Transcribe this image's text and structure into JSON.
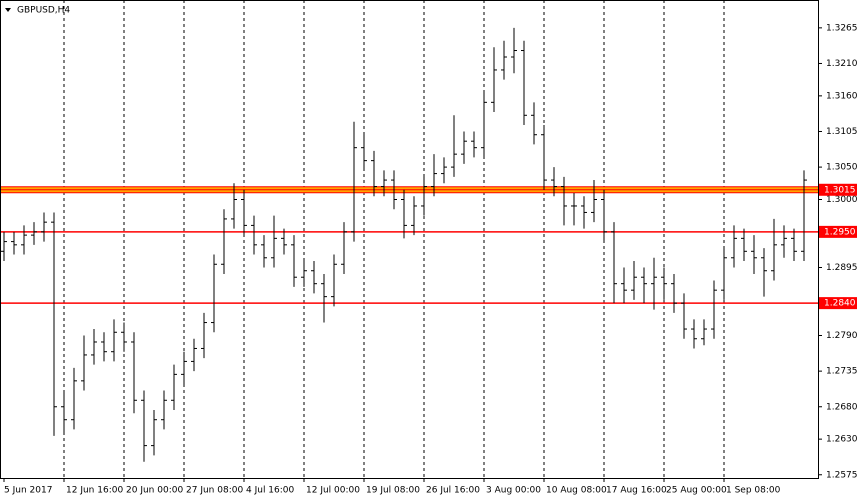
{
  "chart_data": {
    "type": "ohlc",
    "title": "GBPUSD,H4",
    "color": "#000000",
    "grid": true,
    "ylim": [
      1.257,
      1.3308
    ],
    "yticks": [
      1.3265,
      {
        "value": 1.321,
        "label": "1.3210"
      },
      {
        "value": 1.316,
        "label": "1.3160"
      },
      1.3105,
      {
        "value": 1.305,
        "label": "1.3050"
      },
      {
        "value": 1.3,
        "label": "1.3000"
      },
      {
        "value": 1.295,
        "label": "1.2950"
      },
      1.2895,
      {
        "value": 1.284,
        "label": "1.2840"
      },
      {
        "value": 1.279,
        "label": "1.2790"
      },
      1.2735,
      {
        "value": 1.268,
        "label": "1.2680"
      },
      {
        "value": 1.263,
        "label": "1.2630"
      },
      1.2575
    ],
    "levels": [
      {
        "value": 1.3015,
        "label": "1.3015",
        "color": "#ff0000",
        "band": "#ffa500"
      },
      {
        "value": 1.295,
        "label": "1.2950",
        "color": "#ff0000"
      },
      {
        "value": 1.284,
        "label": "1.2840",
        "color": "#ff0000"
      }
    ],
    "categories": [
      "5 Jun 2017",
      null,
      null,
      null,
      null,
      null,
      "12 Jun 16:00",
      null,
      null,
      null,
      null,
      null,
      "20 Jun 00:00",
      null,
      null,
      null,
      null,
      null,
      "27 Jun 08:00",
      null,
      null,
      null,
      null,
      null,
      "4 Jul 16:00",
      null,
      null,
      null,
      null,
      null,
      "12 Jul 00:00",
      null,
      null,
      null,
      null,
      null,
      "19 Jul 08:00",
      null,
      null,
      null,
      null,
      null,
      "26 Jul 16:00",
      null,
      null,
      null,
      null,
      null,
      "3 Aug 00:00",
      null,
      null,
      null,
      null,
      null,
      "10 Aug 08:00",
      null,
      null,
      null,
      null,
      null,
      "17 Aug 16:00",
      null,
      null,
      null,
      null,
      null,
      "25 Aug 00:00",
      null,
      null,
      null,
      null,
      null,
      "1 Sep 08:00",
      null,
      null,
      null,
      null,
      null,
      null,
      null,
      null
    ],
    "bars": [
      [
        1.292,
        1.295,
        1.2905,
        1.2935
      ],
      [
        1.2935,
        1.295,
        1.2915,
        1.293
      ],
      [
        1.293,
        1.296,
        1.2915,
        1.2945
      ],
      [
        1.2945,
        1.2965,
        1.293,
        1.295
      ],
      [
        1.295,
        1.298,
        1.2935,
        1.2965
      ],
      [
        1.2965,
        1.298,
        1.2635,
        1.268
      ],
      [
        1.268,
        1.2705,
        1.264,
        1.266
      ],
      [
        1.266,
        1.274,
        1.2645,
        1.272
      ],
      [
        1.272,
        1.279,
        1.2705,
        1.276
      ],
      [
        1.276,
        1.28,
        1.2745,
        1.278
      ],
      [
        1.278,
        1.2795,
        1.275,
        1.2765
      ],
      [
        1.2765,
        1.2815,
        1.275,
        1.2795
      ],
      [
        1.2795,
        1.281,
        1.2765,
        1.278
      ],
      [
        1.278,
        1.2795,
        1.267,
        1.269
      ],
      [
        1.269,
        1.2705,
        1.2595,
        1.262
      ],
      [
        1.262,
        1.2675,
        1.2605,
        1.266
      ],
      [
        1.266,
        1.2705,
        1.2645,
        1.269
      ],
      [
        1.269,
        1.2745,
        1.2675,
        1.273
      ],
      [
        1.273,
        1.2765,
        1.2715,
        1.275
      ],
      [
        1.275,
        1.2785,
        1.2735,
        1.277
      ],
      [
        1.277,
        1.2825,
        1.2755,
        1.281
      ],
      [
        1.281,
        1.2915,
        1.2795,
        1.29
      ],
      [
        1.29,
        1.2985,
        1.2885,
        1.297
      ],
      [
        1.297,
        1.3025,
        1.2955,
        1.3
      ],
      [
        1.3,
        1.3015,
        1.2945,
        1.296
      ],
      [
        1.296,
        1.2975,
        1.2915,
        1.293
      ],
      [
        1.293,
        1.2945,
        1.2895,
        1.291
      ],
      [
        1.291,
        1.2975,
        1.2895,
        1.294
      ],
      [
        1.294,
        1.2955,
        1.2915,
        1.293
      ],
      [
        1.293,
        1.2945,
        1.2865,
        1.288
      ],
      [
        1.288,
        1.2905,
        1.2865,
        1.289
      ],
      [
        1.289,
        1.2905,
        1.2855,
        1.287
      ],
      [
        1.287,
        1.2885,
        1.281,
        1.285
      ],
      [
        1.285,
        1.2915,
        1.2835,
        1.29
      ],
      [
        1.29,
        1.2965,
        1.2885,
        1.295
      ],
      [
        1.295,
        1.312,
        1.2935,
        1.308
      ],
      [
        1.308,
        1.31,
        1.3045,
        1.306
      ],
      [
        1.306,
        1.3075,
        1.3005,
        1.302
      ],
      [
        1.302,
        1.3045,
        1.3005,
        1.303
      ],
      [
        1.303,
        1.3045,
        1.2985,
        1.3
      ],
      [
        1.3,
        1.3015,
        1.294,
        1.296
      ],
      [
        1.296,
        1.3005,
        1.2945,
        1.299
      ],
      [
        1.299,
        1.3035,
        1.2975,
        1.302
      ],
      [
        1.302,
        1.307,
        1.3005,
        1.304
      ],
      [
        1.304,
        1.3065,
        1.3025,
        1.305
      ],
      [
        1.305,
        1.313,
        1.3035,
        1.307
      ],
      [
        1.307,
        1.3105,
        1.3055,
        1.309
      ],
      [
        1.309,
        1.3105,
        1.3065,
        1.308
      ],
      [
        1.308,
        1.3165,
        1.3065,
        1.315
      ],
      [
        1.315,
        1.3235,
        1.3135,
        1.32
      ],
      [
        1.32,
        1.3245,
        1.3185,
        1.322
      ],
      [
        1.322,
        1.3265,
        1.3195,
        1.323
      ],
      [
        1.323,
        1.3245,
        1.3115,
        1.313
      ],
      [
        1.313,
        1.315,
        1.3085,
        1.31
      ],
      [
        1.31,
        1.3115,
        1.3015,
        1.303
      ],
      [
        1.303,
        1.305,
        1.3005,
        1.302
      ],
      [
        1.302,
        1.3035,
        1.296,
        1.299
      ],
      [
        1.299,
        1.301,
        1.296,
        1.299
      ],
      [
        1.299,
        1.3005,
        1.2955,
        1.298
      ],
      [
        1.298,
        1.303,
        1.2965,
        1.3
      ],
      [
        1.3,
        1.3015,
        1.2935,
        1.295
      ],
      [
        1.295,
        1.2965,
        1.284,
        1.287
      ],
      [
        1.287,
        1.2895,
        1.284,
        1.286
      ],
      [
        1.286,
        1.2905,
        1.2845,
        1.288
      ],
      [
        1.288,
        1.2895,
        1.284,
        1.287
      ],
      [
        1.287,
        1.291,
        1.283,
        1.288
      ],
      [
        1.288,
        1.2895,
        1.2845,
        1.287
      ],
      [
        1.287,
        1.2885,
        1.2825,
        1.284
      ],
      [
        1.284,
        1.2855,
        1.2785,
        1.28
      ],
      [
        1.28,
        1.2815,
        1.277,
        1.2785
      ],
      [
        1.2785,
        1.2815,
        1.2775,
        1.28
      ],
      [
        1.28,
        1.2875,
        1.2785,
        1.286
      ],
      [
        1.286,
        1.2925,
        1.2845,
        1.291
      ],
      [
        1.291,
        1.296,
        1.2895,
        1.294
      ],
      [
        1.294,
        1.2955,
        1.2905,
        1.292
      ],
      [
        1.292,
        1.2945,
        1.2885,
        1.291
      ],
      [
        1.291,
        1.2925,
        1.285,
        1.289
      ],
      [
        1.289,
        1.297,
        1.2875,
        1.293
      ],
      [
        1.293,
        1.296,
        1.291,
        1.294
      ],
      [
        1.294,
        1.2955,
        1.2905,
        1.292
      ],
      [
        1.292,
        1.3045,
        1.2905,
        1.303
      ]
    ]
  }
}
